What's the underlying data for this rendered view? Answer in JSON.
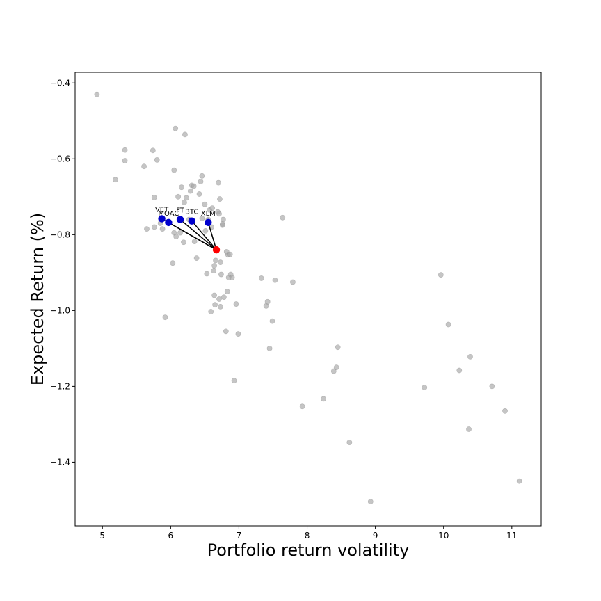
{
  "chart_data": {
    "type": "scatter",
    "title": "",
    "xlabel": "Portfolio return volatility",
    "ylabel": "Expected Return (%)",
    "xlim": [
      4.6,
      11.43
    ],
    "ylim": [
      -1.568,
      -0.372
    ],
    "xticks": [
      5,
      6,
      7,
      8,
      9,
      10,
      11
    ],
    "yticks": [
      -0.4,
      -0.6,
      -0.8,
      -1.0,
      -1.2,
      -1.4
    ],
    "grid": false,
    "colors": {
      "background_points": "#a6a6a6",
      "highlight": "#0000cd",
      "selected": "#ff0000",
      "connector": "#000000"
    },
    "background_points": [
      [
        4.92,
        -0.43
      ],
      [
        5.19,
        -0.655
      ],
      [
        5.33,
        -0.577
      ],
      [
        5.33,
        -0.605
      ],
      [
        5.61,
        -0.62
      ],
      [
        5.65,
        -0.785
      ],
      [
        5.74,
        -0.578
      ],
      [
        5.76,
        -0.702
      ],
      [
        5.76,
        -0.78
      ],
      [
        5.8,
        -0.603
      ],
      [
        5.85,
        -0.77
      ],
      [
        5.88,
        -0.785
      ],
      [
        5.92,
        -1.018
      ],
      [
        6.03,
        -0.875
      ],
      [
        6.05,
        -0.63
      ],
      [
        6.05,
        -0.795
      ],
      [
        6.07,
        -0.52
      ],
      [
        6.08,
        -0.805
      ],
      [
        6.11,
        -0.7
      ],
      [
        6.14,
        -0.795
      ],
      [
        6.16,
        -0.675
      ],
      [
        6.19,
        -0.82
      ],
      [
        6.2,
        -0.715
      ],
      [
        6.21,
        -0.536
      ],
      [
        6.23,
        -0.703
      ],
      [
        6.27,
        -0.76
      ],
      [
        6.29,
        -0.685
      ],
      [
        6.31,
        -0.67
      ],
      [
        6.34,
        -0.672
      ],
      [
        6.35,
        -0.818
      ],
      [
        6.38,
        -0.862
      ],
      [
        6.42,
        -0.693
      ],
      [
        6.44,
        -0.66
      ],
      [
        6.46,
        -0.645
      ],
      [
        6.46,
        -0.757
      ],
      [
        6.5,
        -0.72
      ],
      [
        6.51,
        -0.79
      ],
      [
        6.53,
        -0.903
      ],
      [
        6.55,
        -0.76
      ],
      [
        6.57,
        -0.735
      ],
      [
        6.59,
        -1.003
      ],
      [
        6.6,
        -0.78
      ],
      [
        6.61,
        -0.73
      ],
      [
        6.63,
        -0.895
      ],
      [
        6.64,
        -0.882
      ],
      [
        6.64,
        -0.96
      ],
      [
        6.65,
        -0.985
      ],
      [
        6.66,
        -0.868
      ],
      [
        6.69,
        -0.74
      ],
      [
        6.7,
        -0.663
      ],
      [
        6.71,
        -0.745
      ],
      [
        6.71,
        -0.97
      ],
      [
        6.72,
        -0.706
      ],
      [
        6.73,
        -0.873
      ],
      [
        6.73,
        -0.99
      ],
      [
        6.74,
        -0.905
      ],
      [
        6.76,
        -0.772
      ],
      [
        6.76,
        -0.775
      ],
      [
        6.77,
        -0.76
      ],
      [
        6.78,
        -0.965
      ],
      [
        6.81,
        -1.055
      ],
      [
        6.82,
        -0.845
      ],
      [
        6.83,
        -0.95
      ],
      [
        6.84,
        -0.853
      ],
      [
        6.85,
        -0.913
      ],
      [
        6.87,
        -0.852
      ],
      [
        6.88,
        -0.905
      ],
      [
        6.9,
        -0.913
      ],
      [
        6.93,
        -1.185
      ],
      [
        6.96,
        -0.983
      ],
      [
        6.99,
        -1.062
      ],
      [
        7.33,
        -0.915
      ],
      [
        7.4,
        -0.988
      ],
      [
        7.42,
        -0.977
      ],
      [
        7.45,
        -1.1
      ],
      [
        7.49,
        -1.028
      ],
      [
        7.53,
        -0.92
      ],
      [
        7.64,
        -0.755
      ],
      [
        7.79,
        -0.925
      ],
      [
        7.93,
        -1.253
      ],
      [
        8.24,
        -1.233
      ],
      [
        8.39,
        -1.16
      ],
      [
        8.43,
        -1.15
      ],
      [
        8.45,
        -1.097
      ],
      [
        8.62,
        -1.348
      ],
      [
        8.93,
        -1.504
      ],
      [
        9.72,
        -1.203
      ],
      [
        9.96,
        -0.906
      ],
      [
        10.07,
        -1.037
      ],
      [
        10.23,
        -1.158
      ],
      [
        10.37,
        -1.313
      ],
      [
        10.39,
        -1.122
      ],
      [
        10.71,
        -1.2
      ],
      [
        10.9,
        -1.265
      ],
      [
        11.11,
        -1.45
      ]
    ],
    "selected_point": [
      6.67,
      -0.84
    ],
    "highlighted": [
      {
        "label": "VET",
        "x": 5.87,
        "y": -0.758
      },
      {
        "label": "MOAC",
        "x": 5.97,
        "y": -0.768
      },
      {
        "label": "FT",
        "x": 6.14,
        "y": -0.76
      },
      {
        "label": "BTC",
        "x": 6.31,
        "y": -0.764
      },
      {
        "label": "XLM",
        "x": 6.55,
        "y": -0.768
      }
    ]
  }
}
